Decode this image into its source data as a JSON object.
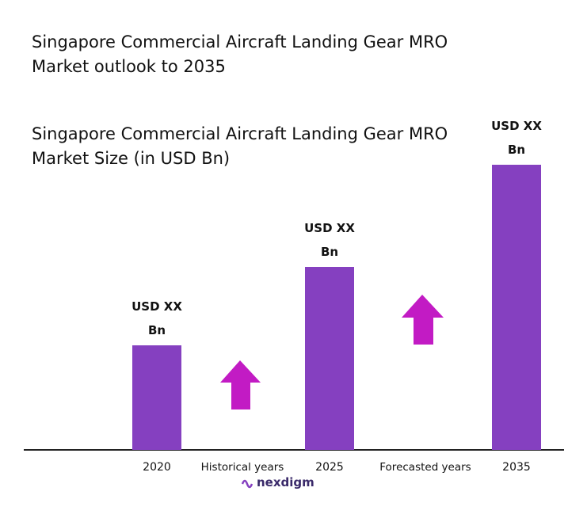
{
  "chart_data": {
    "type": "bar",
    "title": "Singapore Commercial Aircraft Landing Gear MRO Market outlook to 2035",
    "subtitle": "Singapore Commercial Aircraft Landing Gear MRO Market Size (in USD Bn)",
    "categories": [
      "2020",
      "2025",
      "2035"
    ],
    "values": [
      132,
      231,
      360
    ],
    "value_labels": [
      "USD XX Bn",
      "USD XX Bn",
      "USD XX Bn"
    ],
    "color": "#8540c0",
    "ylim": [
      0,
      360
    ],
    "annotations": [
      "Historical years",
      "Forecasted years"
    ],
    "logo": "nexdigm"
  }
}
